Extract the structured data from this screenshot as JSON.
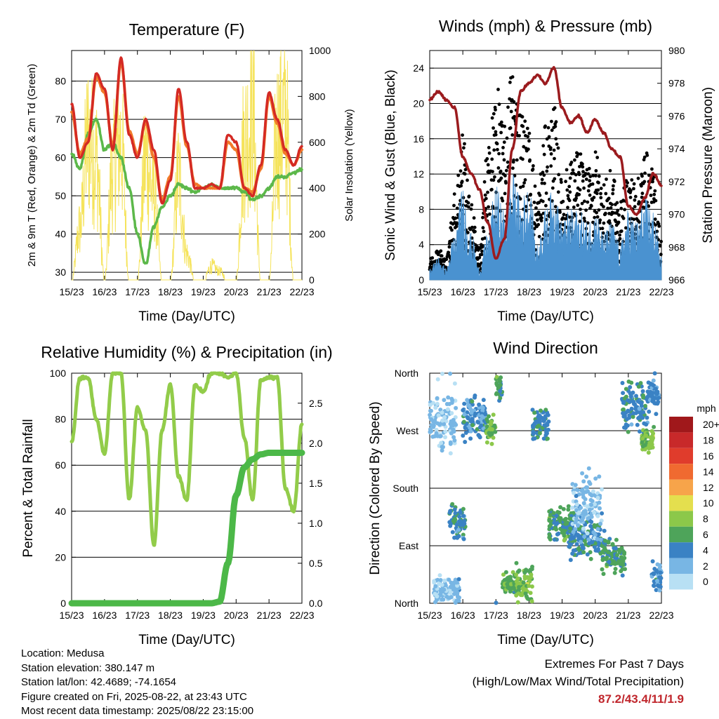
{
  "panels": {
    "temperature": {
      "title": "Temperature (F)",
      "xlabel": "Time (Day/UTC)",
      "ylabel_left": "2m & 9m T (Red, Orange) & 2m Td (Green)",
      "ylabel_right": "Solar Insolation (Yellow)"
    },
    "winds": {
      "title": "Winds (mph) & Pressure (mb)",
      "xlabel": "Time (Day/UTC)",
      "ylabel_left": "Sonic Wind & Gust (Blue, Black)",
      "ylabel_right": "Station Pressure (Maroon)"
    },
    "humidity": {
      "title": "Relative Humidity (%) & Precipitation (in)",
      "xlabel": "Time (Day/UTC)",
      "ylabel_left": "Percent & Total Rainfall"
    },
    "direction": {
      "title": "Wind Direction",
      "xlabel": "Time (Day/UTC)",
      "ylabel_left": "Direction (Colored By Speed)",
      "colorbar_title": "mph",
      "colorbar_labels": [
        "20+",
        "18",
        "16",
        "14",
        "12",
        "10",
        "8",
        "6",
        "4",
        "2",
        "0"
      ],
      "colorbar_colors": [
        "#a0181b",
        "#c8292a",
        "#e03c2c",
        "#f06a30",
        "#f7a44a",
        "#e4df4e",
        "#8cc84a",
        "#4ea45a",
        "#3a82c4",
        "#78b6e4",
        "#b8e0f4"
      ]
    }
  },
  "info": {
    "location": "Location: Medusa",
    "elevation": "Station elevation: 380.147 m",
    "latlon": "Station lat/lon: 42.4689; -74.1654",
    "created": "Figure created on Fri, 2025-08-22, at 23:43 UTC",
    "recent": "Most recent data timestamp: 2025/08/22 23:15:00"
  },
  "extremes": {
    "title": "Extremes For Past 7 Days",
    "subtitle": "(High/Low/Max Wind/Total Precipitation)",
    "values": "87.2/43.4/11/1.9"
  },
  "colors": {
    "temp_2m": "#d42a24",
    "temp_9m": "#f27a2a",
    "dewpoint": "#5cb84a",
    "solar": "#f5e35a",
    "wind": "#4a92d0",
    "gust": "#000000",
    "pressure": "#9b1b1e",
    "rh": "#92cc4a",
    "precip": "#4cb848"
  },
  "chart_data": [
    {
      "type": "line",
      "panel": "temperature",
      "x_ticks": [
        "15/23",
        "16/23",
        "17/23",
        "18/23",
        "19/23",
        "20/23",
        "21/23",
        "22/23"
      ],
      "x": [
        0,
        0.25,
        0.5,
        0.75,
        1.0,
        1.25,
        1.5,
        1.75,
        2.0,
        2.25,
        2.5,
        2.75,
        3.0,
        3.25,
        3.5,
        3.75,
        4.0,
        4.25,
        4.5,
        4.75,
        5.0,
        5.25,
        5.5,
        5.75,
        6.0,
        6.25,
        6.5,
        6.75,
        7.0
      ],
      "series": [
        {
          "name": "2m T",
          "axis": "left",
          "values": [
            74,
            60,
            64,
            82,
            78,
            62,
            86,
            66,
            60,
            70,
            62,
            48,
            54,
            78,
            64,
            52,
            52,
            53,
            52,
            66,
            64,
            52,
            50,
            58,
            77,
            70,
            62,
            58,
            63
          ]
        },
        {
          "name": "9m T",
          "axis": "left",
          "values": [
            72,
            61,
            65,
            81,
            77,
            63,
            85,
            67,
            61,
            69,
            60,
            49,
            55,
            76,
            63,
            53,
            52,
            52,
            52,
            64,
            62,
            52,
            51,
            57,
            76,
            69,
            61,
            58,
            62
          ]
        },
        {
          "name": "2m Td",
          "axis": "left",
          "values": [
            61,
            57,
            66,
            70,
            62,
            64,
            60,
            52,
            40,
            32,
            42,
            47,
            50,
            53,
            52,
            51,
            52,
            53,
            52,
            52,
            52,
            51,
            49,
            50,
            52,
            55,
            55,
            56,
            57
          ]
        },
        {
          "name": "Solar Insolation",
          "axis": "right",
          "values": [
            0,
            300,
            820,
            700,
            0,
            650,
            800,
            0,
            0,
            700,
            500,
            0,
            0,
            600,
            150,
            0,
            0,
            80,
            50,
            0,
            0,
            800,
            950,
            0,
            0,
            850,
            950,
            0,
            0
          ]
        }
      ],
      "ylim_left": [
        28,
        88
      ],
      "ylim_right": [
        0,
        1000
      ],
      "y_ticks_left": [
        30,
        40,
        50,
        60,
        70,
        80
      ],
      "y_ticks_right": [
        0,
        200,
        400,
        600,
        800,
        1000
      ]
    },
    {
      "type": "line",
      "panel": "winds",
      "x_ticks": [
        "15/23",
        "16/23",
        "17/23",
        "18/23",
        "19/23",
        "20/23",
        "21/23",
        "22/23"
      ],
      "x": [
        0,
        0.25,
        0.5,
        0.75,
        1.0,
        1.25,
        1.5,
        1.75,
        2.0,
        2.25,
        2.5,
        2.75,
        3.0,
        3.25,
        3.5,
        3.75,
        4.0,
        4.25,
        4.5,
        4.75,
        5.0,
        5.25,
        5.5,
        5.75,
        6.0,
        6.25,
        6.5,
        6.75,
        7.0
      ],
      "series": [
        {
          "name": "Sonic Wind",
          "axis": "left",
          "values": [
            1,
            2,
            1,
            4,
            8,
            4,
            1,
            4,
            8,
            6,
            9,
            7,
            8,
            3,
            6,
            8,
            5,
            6,
            6,
            5,
            6,
            4,
            5,
            3,
            6,
            5,
            7,
            6,
            2
          ]
        },
        {
          "name": "Gust",
          "axis": "left",
          "values": [
            2,
            3,
            2,
            8,
            14,
            7,
            3,
            12,
            18,
            14,
            20,
            16,
            14,
            8,
            14,
            16,
            9,
            11,
            12,
            10,
            12,
            9,
            10,
            7,
            10,
            9,
            12,
            10,
            4
          ]
        },
        {
          "name": "Station Pressure",
          "axis": "right",
          "values": [
            977,
            977.5,
            977,
            976.5,
            973.5,
            972.5,
            971.5,
            969.5,
            967.3,
            968.5,
            974,
            977.5,
            978,
            978.5,
            978,
            979,
            976.5,
            975.6,
            976,
            975,
            975.8,
            975,
            974,
            973.5,
            970.5,
            970,
            971,
            972.5,
            971.8
          ]
        }
      ],
      "ylim_left": [
        0,
        26
      ],
      "ylim_right": [
        966,
        980
      ],
      "y_ticks_left": [
        0,
        4,
        8,
        12,
        16,
        20,
        24
      ],
      "y_ticks_right": [
        966,
        968,
        970,
        972,
        974,
        976,
        978,
        980
      ]
    },
    {
      "type": "line",
      "panel": "humidity",
      "x_ticks": [
        "15/23",
        "16/23",
        "17/23",
        "18/23",
        "19/23",
        "20/23",
        "21/23",
        "22/23"
      ],
      "x": [
        0,
        0.25,
        0.5,
        0.75,
        1.0,
        1.25,
        1.5,
        1.75,
        2.0,
        2.25,
        2.5,
        2.75,
        3.0,
        3.25,
        3.5,
        3.75,
        4.0,
        4.25,
        4.5,
        4.75,
        5.0,
        5.25,
        5.5,
        5.75,
        6.0,
        6.25,
        6.5,
        6.75,
        7.0
      ],
      "series": [
        {
          "name": "Relative Humidity",
          "axis": "left",
          "values": [
            70,
            98,
            98,
            80,
            65,
            100,
            100,
            45,
            85,
            75,
            25,
            75,
            95,
            55,
            45,
            95,
            92,
            100,
            100,
            98,
            100,
            72,
            45,
            97,
            98,
            98,
            50,
            40,
            78
          ]
        },
        {
          "name": "Total Precipitation",
          "axis": "right",
          "values": [
            0,
            0,
            0,
            0,
            0,
            0,
            0,
            0,
            0,
            0,
            0,
            0,
            0,
            0,
            0,
            0,
            0,
            0,
            0.02,
            0.5,
            1.35,
            1.7,
            1.8,
            1.86,
            1.88,
            1.88,
            1.88,
            1.88,
            1.88
          ]
        }
      ],
      "ylim_left": [
        0,
        100
      ],
      "ylim_right": [
        0,
        2.875
      ],
      "y_ticks_left": [
        0,
        20,
        40,
        60,
        80,
        100
      ],
      "y_ticks_right": [
        "0.0",
        "0.5",
        "1.0",
        "1.5",
        "2.0",
        "2.5"
      ]
    },
    {
      "type": "scatter",
      "panel": "direction",
      "x_ticks": [
        "15/23",
        "16/23",
        "17/23",
        "18/23",
        "19/23",
        "20/23",
        "21/23",
        "22/23"
      ],
      "y_ticks": [
        "North",
        "West",
        "South",
        "East",
        "North"
      ],
      "y_values_deg": [
        360,
        270,
        180,
        90,
        0
      ],
      "clusters": [
        {
          "x_start": 0.0,
          "x_end": 0.8,
          "dir": 290,
          "spread": 55,
          "speed": 1
        },
        {
          "x_start": 0.1,
          "x_end": 0.9,
          "dir": 20,
          "spread": 25,
          "speed": 1
        },
        {
          "x_start": 0.6,
          "x_end": 1.1,
          "dir": 130,
          "spread": 35,
          "speed": 4
        },
        {
          "x_start": 1.0,
          "x_end": 1.7,
          "dir": 290,
          "spread": 40,
          "speed": 3
        },
        {
          "x_start": 1.7,
          "x_end": 2.0,
          "dir": 275,
          "spread": 30,
          "speed": 6
        },
        {
          "x_start": 2.0,
          "x_end": 2.2,
          "dir": 340,
          "spread": 25,
          "speed": 5
        },
        {
          "x_start": 2.2,
          "x_end": 2.6,
          "dir": 30,
          "spread": 25,
          "speed": 6
        },
        {
          "x_start": 2.6,
          "x_end": 3.1,
          "dir": 30,
          "spread": 30,
          "speed": 7
        },
        {
          "x_start": 3.1,
          "x_end": 3.6,
          "dir": 275,
          "spread": 30,
          "speed": 4
        },
        {
          "x_start": 3.6,
          "x_end": 4.3,
          "dir": 125,
          "spread": 35,
          "speed": 5
        },
        {
          "x_start": 4.2,
          "x_end": 5.3,
          "dir": 105,
          "spread": 40,
          "speed": 4
        },
        {
          "x_start": 4.3,
          "x_end": 5.2,
          "dir": 150,
          "spread": 60,
          "speed": 1
        },
        {
          "x_start": 5.2,
          "x_end": 5.9,
          "dir": 75,
          "spread": 30,
          "speed": 5
        },
        {
          "x_start": 5.8,
          "x_end": 6.6,
          "dir": 310,
          "spread": 45,
          "speed": 4
        },
        {
          "x_start": 6.4,
          "x_end": 6.8,
          "dir": 255,
          "spread": 20,
          "speed": 7
        },
        {
          "x_start": 6.6,
          "x_end": 6.95,
          "dir": 330,
          "spread": 30,
          "speed": 3
        },
        {
          "x_start": 6.7,
          "x_end": 7.0,
          "dir": 40,
          "spread": 30,
          "speed": 3
        }
      ],
      "ylim": [
        0,
        360
      ]
    }
  ]
}
